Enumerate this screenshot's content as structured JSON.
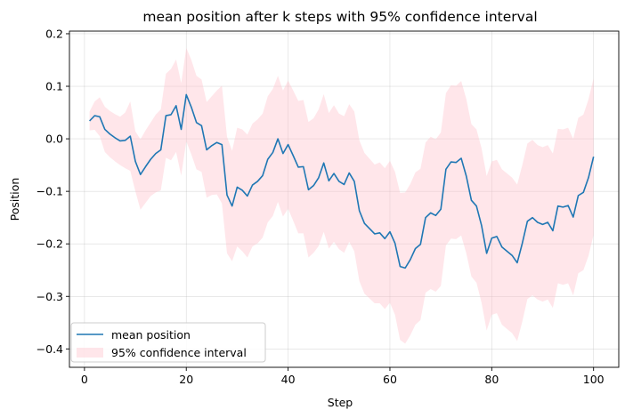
{
  "chart_data": {
    "type": "line",
    "title": "mean position after k steps with 95% confidence interval",
    "xlabel": "Step",
    "ylabel": "Position",
    "xlim": [
      -2.95,
      104.95
    ],
    "ylim": [
      -0.435,
      0.205
    ],
    "xticks": [
      0,
      20,
      40,
      60,
      80,
      100
    ],
    "yticks": [
      -0.4,
      -0.3,
      -0.2,
      -0.1,
      0.0,
      0.1,
      0.2
    ],
    "ytick_labels": [
      "−0.4",
      "−0.3",
      "−0.2",
      "−0.1",
      "0.0",
      "0.1",
      "0.2"
    ],
    "grid": true,
    "legend_position": "lower left",
    "series": [
      {
        "name": "mean position",
        "kind": "line",
        "color": "#1f77b4",
        "x": [
          1,
          2,
          3,
          4,
          5,
          6,
          7,
          8,
          9,
          10,
          11,
          12,
          13,
          14,
          15,
          16,
          17,
          18,
          19,
          20,
          21,
          22,
          23,
          24,
          25,
          26,
          27,
          28,
          29,
          30,
          31,
          32,
          33,
          34,
          35,
          36,
          37,
          38,
          39,
          40,
          41,
          42,
          43,
          44,
          45,
          46,
          47,
          48,
          49,
          50,
          51,
          52,
          53,
          54,
          55,
          56,
          57,
          58,
          59,
          60,
          61,
          62,
          63,
          64,
          65,
          66,
          67,
          68,
          69,
          70,
          71,
          72,
          73,
          74,
          75,
          76,
          77,
          78,
          79,
          80,
          81,
          82,
          83,
          84,
          85,
          86,
          87,
          88,
          89,
          90,
          91,
          92,
          93,
          94,
          95,
          96,
          97,
          98,
          99,
          100
        ],
        "values": [
          0.034,
          0.044,
          0.042,
          0.018,
          0.009,
          0.002,
          -0.004,
          -0.003,
          0.005,
          -0.043,
          -0.068,
          -0.053,
          -0.039,
          -0.028,
          -0.021,
          0.044,
          0.046,
          0.063,
          0.018,
          0.084,
          0.06,
          0.031,
          0.025,
          -0.021,
          -0.013,
          -0.007,
          -0.011,
          -0.107,
          -0.128,
          -0.092,
          -0.098,
          -0.109,
          -0.088,
          -0.081,
          -0.07,
          -0.039,
          -0.026,
          0.0,
          -0.028,
          -0.011,
          -0.032,
          -0.054,
          -0.053,
          -0.097,
          -0.089,
          -0.074,
          -0.046,
          -0.08,
          -0.066,
          -0.081,
          -0.087,
          -0.065,
          -0.081,
          -0.137,
          -0.161,
          -0.171,
          -0.181,
          -0.179,
          -0.19,
          -0.177,
          -0.199,
          -0.243,
          -0.246,
          -0.23,
          -0.209,
          -0.201,
          -0.15,
          -0.141,
          -0.146,
          -0.134,
          -0.058,
          -0.044,
          -0.045,
          -0.037,
          -0.071,
          -0.117,
          -0.128,
          -0.165,
          -0.218,
          -0.189,
          -0.186,
          -0.206,
          -0.214,
          -0.222,
          -0.236,
          -0.199,
          -0.157,
          -0.15,
          -0.159,
          -0.163,
          -0.159,
          -0.175,
          -0.128,
          -0.13,
          -0.127,
          -0.149,
          -0.108,
          -0.102,
          -0.074,
          -0.034
        ]
      },
      {
        "name": "95% confidence interval",
        "kind": "band",
        "color": "#ffc0cb",
        "x": [
          1,
          2,
          3,
          4,
          5,
          6,
          7,
          8,
          9,
          10,
          11,
          12,
          13,
          14,
          15,
          16,
          17,
          18,
          19,
          20,
          21,
          22,
          23,
          24,
          25,
          26,
          27,
          28,
          29,
          30,
          31,
          32,
          33,
          34,
          35,
          36,
          37,
          38,
          39,
          40,
          41,
          42,
          43,
          44,
          45,
          46,
          47,
          48,
          49,
          50,
          51,
          52,
          53,
          54,
          55,
          56,
          57,
          58,
          59,
          60,
          61,
          62,
          63,
          64,
          65,
          66,
          67,
          68,
          69,
          70,
          71,
          72,
          73,
          74,
          75,
          76,
          77,
          78,
          79,
          80,
          81,
          82,
          83,
          84,
          85,
          86,
          87,
          88,
          89,
          90,
          91,
          92,
          93,
          94,
          95,
          96,
          97,
          98,
          99,
          100
        ],
        "lower": [
          0.016,
          0.017,
          0.005,
          -0.025,
          -0.035,
          -0.043,
          -0.05,
          -0.056,
          -0.061,
          -0.1,
          -0.135,
          -0.122,
          -0.109,
          -0.102,
          -0.098,
          -0.036,
          -0.041,
          -0.025,
          -0.07,
          -0.005,
          -0.03,
          -0.058,
          -0.063,
          -0.112,
          -0.107,
          -0.106,
          -0.123,
          -0.218,
          -0.233,
          -0.205,
          -0.214,
          -0.226,
          -0.205,
          -0.199,
          -0.188,
          -0.159,
          -0.147,
          -0.12,
          -0.148,
          -0.133,
          -0.156,
          -0.18,
          -0.18,
          -0.226,
          -0.217,
          -0.204,
          -0.177,
          -0.209,
          -0.196,
          -0.21,
          -0.217,
          -0.196,
          -0.214,
          -0.271,
          -0.295,
          -0.304,
          -0.313,
          -0.313,
          -0.324,
          -0.312,
          -0.335,
          -0.383,
          -0.39,
          -0.374,
          -0.354,
          -0.345,
          -0.293,
          -0.286,
          -0.291,
          -0.28,
          -0.203,
          -0.19,
          -0.191,
          -0.184,
          -0.218,
          -0.262,
          -0.274,
          -0.312,
          -0.365,
          -0.335,
          -0.332,
          -0.354,
          -0.362,
          -0.37,
          -0.385,
          -0.348,
          -0.305,
          -0.298,
          -0.306,
          -0.31,
          -0.306,
          -0.322,
          -0.275,
          -0.278,
          -0.275,
          -0.298,
          -0.256,
          -0.25,
          -0.223,
          -0.183
        ],
        "upper": [
          0.052,
          0.071,
          0.079,
          0.061,
          0.053,
          0.047,
          0.042,
          0.05,
          0.071,
          0.014,
          -0.001,
          0.016,
          0.031,
          0.046,
          0.056,
          0.124,
          0.133,
          0.151,
          0.106,
          0.173,
          0.15,
          0.12,
          0.113,
          0.07,
          0.081,
          0.092,
          0.101,
          0.004,
          -0.023,
          0.021,
          0.018,
          0.008,
          0.029,
          0.037,
          0.048,
          0.081,
          0.095,
          0.12,
          0.092,
          0.111,
          0.092,
          0.072,
          0.074,
          0.032,
          0.039,
          0.056,
          0.085,
          0.049,
          0.064,
          0.048,
          0.043,
          0.066,
          0.052,
          -0.003,
          -0.027,
          -0.038,
          -0.049,
          -0.045,
          -0.056,
          -0.042,
          -0.063,
          -0.103,
          -0.102,
          -0.086,
          -0.064,
          -0.057,
          -0.007,
          0.004,
          -0.001,
          0.012,
          0.087,
          0.102,
          0.101,
          0.11,
          0.076,
          0.028,
          0.018,
          -0.018,
          -0.071,
          -0.043,
          -0.04,
          -0.058,
          -0.066,
          -0.074,
          -0.087,
          -0.05,
          -0.009,
          -0.002,
          -0.012,
          -0.016,
          -0.012,
          -0.028,
          0.019,
          0.018,
          0.021,
          0.0,
          0.04,
          0.046,
          0.075,
          0.115
        ]
      }
    ]
  }
}
